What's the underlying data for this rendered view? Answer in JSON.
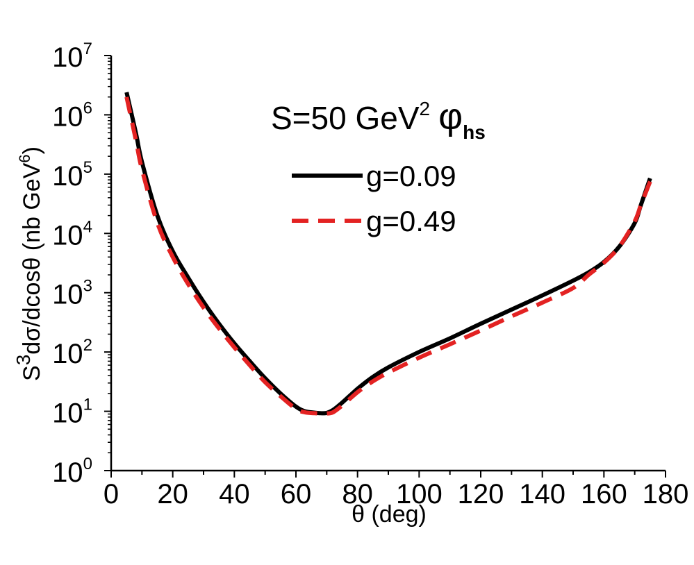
{
  "chart_data": {
    "type": "line",
    "annotation": {
      "main": "S=50 GeV",
      "sup": "2",
      "phi": "φ",
      "sub": "hs"
    },
    "xlabel": "θ (deg)",
    "ylabel": {
      "prefix": "S",
      "sup": "3",
      "main": "dσ/dcosθ (nb GeV",
      "sup2": "6",
      "close": ")"
    },
    "xlim": [
      0,
      180
    ],
    "x_ticks": [
      "0",
      "20",
      "40",
      "60",
      "80",
      "100",
      "120",
      "140",
      "160",
      "180"
    ],
    "x_tick_values": [
      0,
      20,
      40,
      60,
      80,
      100,
      120,
      140,
      160,
      180
    ],
    "ylim": [
      1,
      10000000
    ],
    "y_scale": "log",
    "y_ticks": [
      {
        "base": "10",
        "exp": "0"
      },
      {
        "base": "10",
        "exp": "1"
      },
      {
        "base": "10",
        "exp": "2"
      },
      {
        "base": "10",
        "exp": "3"
      },
      {
        "base": "10",
        "exp": "4"
      },
      {
        "base": "10",
        "exp": "5"
      },
      {
        "base": "10",
        "exp": "6"
      },
      {
        "base": "10",
        "exp": "7"
      }
    ],
    "legend_position": "upper-right",
    "grid": false,
    "series": [
      {
        "name": "g=0.09",
        "color": "#000000",
        "style": "solid",
        "x": [
          5,
          8,
          10,
          15,
          20,
          25,
          30,
          35,
          40,
          45,
          50,
          55,
          60,
          63,
          66,
          68,
          70,
          72,
          75,
          80,
          85,
          90,
          100,
          110,
          120,
          130,
          140,
          150,
          155,
          160,
          165,
          170,
          172,
          175
        ],
        "y": [
          2400000,
          500000,
          160000,
          20000,
          5000,
          1800,
          700,
          300,
          140,
          70,
          36,
          20,
          12,
          10,
          9.5,
          9.3,
          9.4,
          10.5,
          14,
          24,
          38,
          55,
          100,
          170,
          300,
          520,
          900,
          1600,
          2200,
          3300,
          6000,
          15000,
          30000,
          85000
        ]
      },
      {
        "name": "g=0.49",
        "color": "#e32222",
        "style": "dashed",
        "x": [
          5,
          8,
          10,
          15,
          20,
          25,
          30,
          35,
          40,
          45,
          50,
          55,
          60,
          63,
          66,
          68,
          70,
          72,
          75,
          80,
          85,
          90,
          100,
          110,
          120,
          130,
          140,
          150,
          155,
          160,
          165,
          170,
          172,
          175
        ],
        "y": [
          2000000,
          380000,
          120000,
          15000,
          4000,
          1400,
          560,
          250,
          120,
          60,
          31,
          18,
          11,
          9.6,
          9.3,
          9.2,
          9.2,
          9.6,
          12.5,
          21,
          32,
          45,
          80,
          135,
          230,
          400,
          680,
          1200,
          2000,
          3200,
          6000,
          16000,
          30000,
          75000
        ]
      }
    ]
  }
}
